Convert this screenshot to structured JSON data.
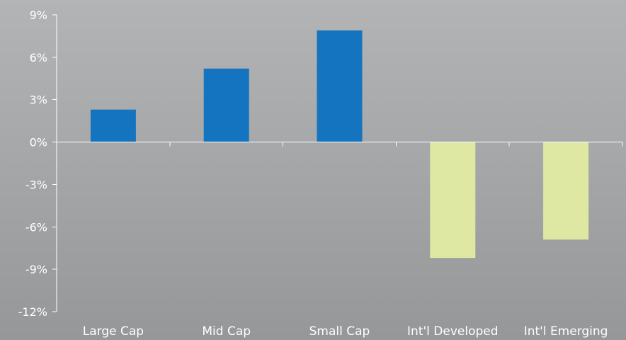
{
  "chart_data": {
    "type": "bar",
    "categories": [
      "Large Cap",
      "Mid Cap",
      "Small Cap",
      "Int'l Developed",
      "Int'l Emerging"
    ],
    "values": [
      2.3,
      5.2,
      7.9,
      -8.2,
      -6.9
    ],
    "bar_colors": [
      "#1474bf",
      "#1474bf",
      "#1474bf",
      "#dee8a2",
      "#dee8a2"
    ],
    "ylim": [
      -12,
      9
    ],
    "yticks": [
      9,
      6,
      3,
      0,
      -3,
      -6,
      -9,
      -12
    ],
    "ytick_labels": [
      "9%",
      "6%",
      "3%",
      "0%",
      "-3%",
      "-6%",
      "-9%",
      "-12%"
    ],
    "title": "",
    "xlabel": "",
    "ylabel": "",
    "grid": false,
    "legend": "none"
  }
}
